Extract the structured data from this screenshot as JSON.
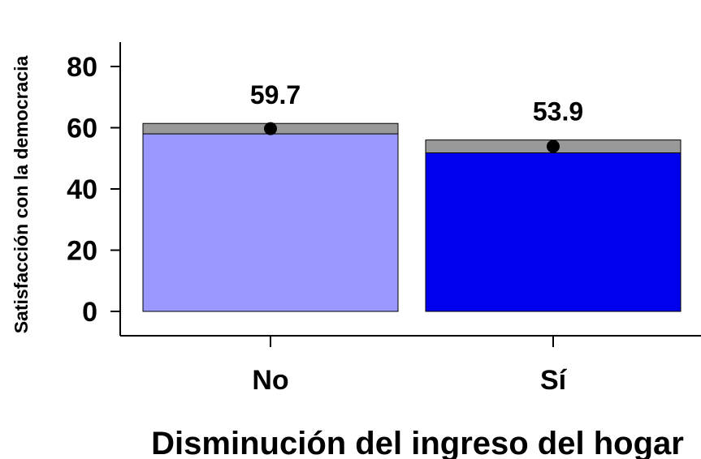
{
  "chart_data": {
    "type": "bar",
    "title": "",
    "xlabel": "Disminución del ingreso del hogar",
    "ylabel": "Satisfacción con la democracia",
    "categories": [
      "No",
      "Sí"
    ],
    "values": [
      59.7,
      53.9
    ],
    "value_labels": [
      "59.7",
      "53.9"
    ],
    "ci_low": [
      58.0,
      51.8
    ],
    "ci_high": [
      61.4,
      56.0
    ],
    "ylim": [
      0,
      80
    ],
    "yticks": [
      0,
      20,
      40,
      60,
      80
    ],
    "ytick_labels": [
      "0",
      "20",
      "40",
      "60",
      "80"
    ],
    "grid": false,
    "legend": "none",
    "colors": {
      "bars": [
        "#9999ff",
        "#0000ee"
      ],
      "ci_band": "#999999",
      "point": "#000000",
      "axis": "#000000"
    }
  }
}
